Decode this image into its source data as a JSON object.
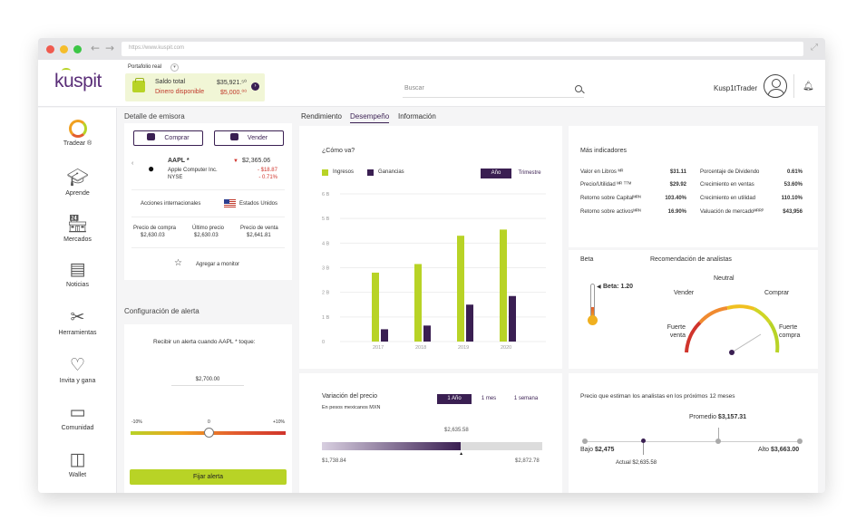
{
  "browser": {
    "url": "https://www.kuspit.com"
  },
  "header": {
    "logo": "kuspit",
    "portfolio_label": "Portafolio real",
    "balance": {
      "total_label": "Saldo total",
      "total_value": "$35,921.⁵⁰",
      "available_label": "Dinero disponible",
      "available_value": "$5,000.⁰⁰"
    },
    "search_placeholder": "Buscar",
    "username": "Kusp1tTrader"
  },
  "sidebar": {
    "items": [
      {
        "label": "Tradear ®",
        "icon": "tradear-ring-icon"
      },
      {
        "label": "Aprende",
        "icon": "graduation-cap-icon"
      },
      {
        "label": "Mercados",
        "icon": "store-icon"
      },
      {
        "label": "Noticias",
        "icon": "newspaper-icon"
      },
      {
        "label": "Herramientas",
        "icon": "tools-icon"
      },
      {
        "label": "Invita y gana",
        "icon": "heart-icon"
      },
      {
        "label": "Comunidad",
        "icon": "chat-icon"
      },
      {
        "label": "Wallet",
        "icon": "wallet-icon"
      }
    ]
  },
  "emisora": {
    "title": "Detalle de emisora",
    "buy_label": "Comprar",
    "sell_label": "Vender",
    "ticker": "AAPL *",
    "company": "Apple Computer Inc.",
    "exchange": "NYSE",
    "price": "$2,365.06",
    "change_abs": "- $18.87",
    "change_pct": "- 0.71%",
    "market_type": "Acciones internacionales",
    "country": "Estados Unidos",
    "buy_price_label": "Precio de compra",
    "buy_price": "$2,630.03",
    "last_price_label": "Último precio",
    "last_price": "$2,630.03",
    "sell_price_label": "Precio de venta",
    "sell_price": "$2,641.81",
    "monitor_label": "Agregar a monitor"
  },
  "alert": {
    "title": "Configuración de alerta",
    "prompt": "Recibir un alerta cuando AAPL * toque:",
    "value": "$2,700.00",
    "scale_min": "-10%",
    "scale_mid": "0",
    "scale_max": "+10%",
    "button_label": "Fijar alerta"
  },
  "tabs": [
    "Rendimiento",
    "Desempeño",
    "Información"
  ],
  "chart_data": {
    "type": "bar",
    "title": "¿Cómo va?",
    "categories": [
      "2017",
      "2018",
      "2019",
      "2020"
    ],
    "series": [
      {
        "name": "Ingresos",
        "values": [
          2.8,
          3.15,
          4.3,
          4.55
        ]
      },
      {
        "name": "Ganancias",
        "values": [
          0.5,
          0.65,
          1.5,
          1.85
        ]
      }
    ],
    "yticks": [
      "0",
      "1 B",
      "2 B",
      "3 B",
      "4 B",
      "5 B",
      "6 B"
    ],
    "ylim": [
      0,
      6
    ],
    "colors": {
      "Ingresos": "#b8d326",
      "Ganancias": "#3a1f52"
    },
    "toggle": {
      "active": "Año",
      "inactive": "Trimestre"
    },
    "legend_position": "top-left",
    "grid": true
  },
  "indicators": {
    "title": "Más indicadores",
    "left": [
      {
        "label": "Valor en Libros ᴹᴿ",
        "value": "$31.11"
      },
      {
        "label": "Precio/Utilidad ᴹᴿ ᵀᵀᴹ",
        "value": "$29.92"
      },
      {
        "label": "Retorno sobre Capitalᴹᴿᴺ",
        "value": "103.40%"
      },
      {
        "label": "Retorno sobre activosᴹᴿᴺ",
        "value": "16.90%"
      }
    ],
    "right": [
      {
        "label": "Porcentaje de Dividendo",
        "value": "0.61%"
      },
      {
        "label": "Crecimiento en ventas",
        "value": "53.60%"
      },
      {
        "label": "Crecimiento en utilidad",
        "value": "110.10%"
      },
      {
        "label": "Valuación de mercadoᴹᴿᴿᴾ",
        "value": "$43,956"
      }
    ]
  },
  "beta": {
    "title": "Beta",
    "value_label": "Beta: 1.20",
    "level": 0.3
  },
  "recommendation": {
    "title": "Recomendación de analistas",
    "labels": {
      "strong_sell": "Fuerte venta",
      "sell": "Vender",
      "neutral": "Neutral",
      "buy": "Comprar",
      "strong_buy": "Fuerte compra"
    }
  },
  "price_variation": {
    "title": "Variación del precio",
    "subtitle": "En pesos mexicanos MXN",
    "periods": [
      "1 Año",
      "1 mes",
      "1 semana"
    ],
    "active_period": "1 Año",
    "current": "$2,635.58",
    "min": "$1,738.84",
    "max": "$2,872.78",
    "fill_fraction": 0.63
  },
  "analyst_target": {
    "title": "Precio que estiman los analistas en los próximos 12 meses",
    "average_label": "Promedio",
    "average": "$3,157.31",
    "low_label": "Bajo",
    "low": "$2,475",
    "high_label": "Alto",
    "high": "$3,663.00",
    "actual_label": "Actual",
    "actual": "$2,635.58"
  }
}
